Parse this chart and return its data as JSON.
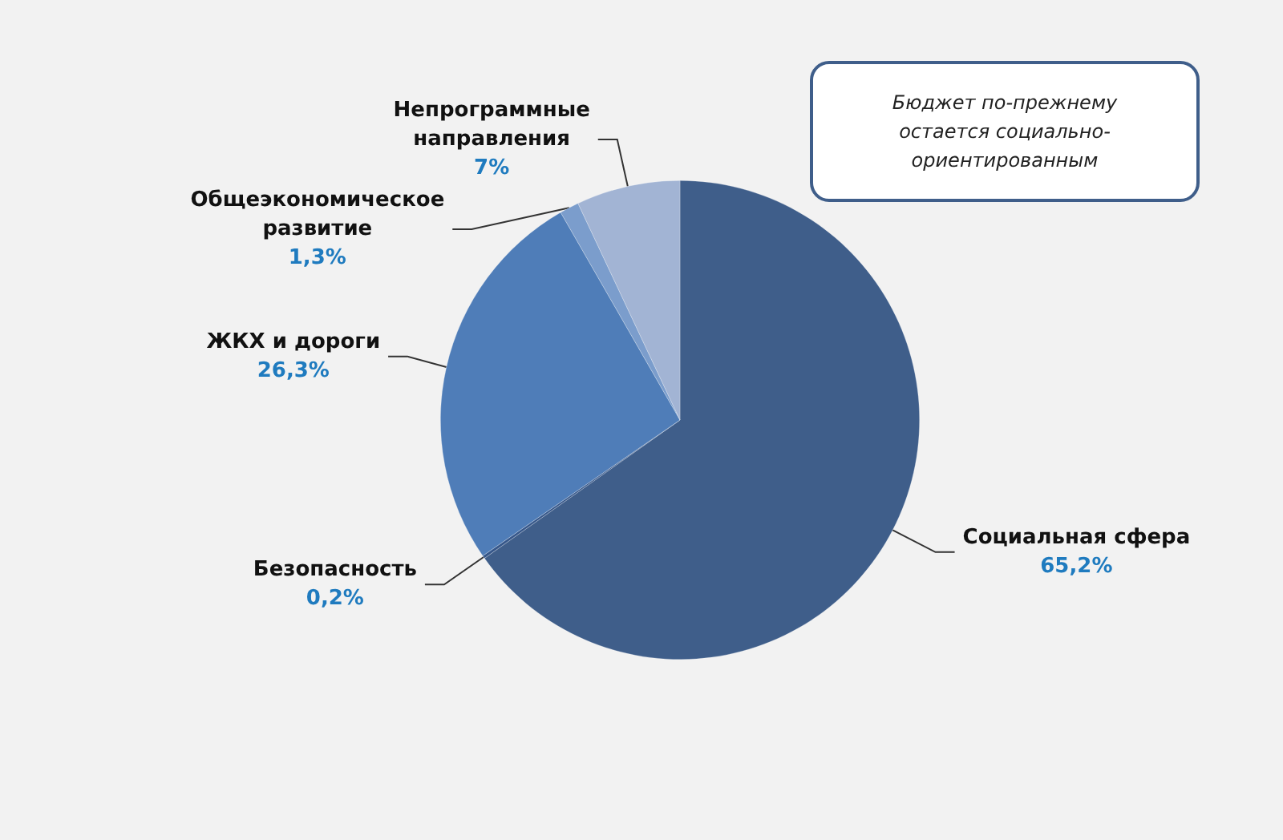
{
  "chart_data": {
    "type": "pie",
    "categories": [
      "Социальная сфера",
      "Безопасность",
      "ЖКХ и дороги",
      "Общеэкономическое развитие",
      "Непрограммные направления"
    ],
    "values": [
      65.2,
      0.2,
      26.3,
      1.3,
      7
    ],
    "value_labels": [
      "65,2%",
      "0,2%",
      "26,3%",
      "1,3%",
      "7%"
    ],
    "colors": [
      "#3f5e8a",
      "#36578a",
      "#4f7db8",
      "#7b9dcc",
      "#a2b4d4"
    ],
    "annotations": [
      "Бюджет по-прежнему остается социально-ориентированным"
    ]
  }
}
